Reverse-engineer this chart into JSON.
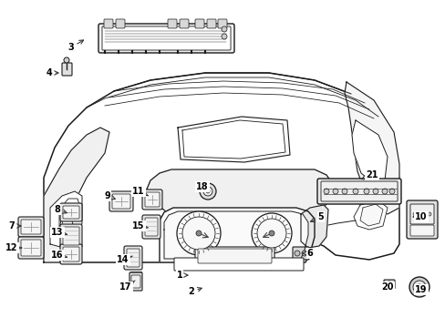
{
  "background_color": "#ffffff",
  "line_color": "#1a1a1a",
  "text_color": "#000000",
  "figsize": [
    4.89,
    3.6
  ],
  "dpi": 100,
  "annotations": [
    [
      "3",
      95,
      42,
      78,
      52
    ],
    [
      "4",
      68,
      80,
      54,
      80
    ],
    [
      "7",
      27,
      248,
      13,
      248
    ],
    [
      "8",
      77,
      235,
      63,
      230
    ],
    [
      "9",
      130,
      220,
      118,
      215
    ],
    [
      "10",
      452,
      238,
      462,
      238
    ],
    [
      "11",
      163,
      215,
      152,
      210
    ],
    [
      "12",
      27,
      272,
      13,
      272
    ],
    [
      "13",
      77,
      258,
      63,
      255
    ],
    [
      "14",
      148,
      280,
      135,
      285
    ],
    [
      "15",
      163,
      250,
      152,
      248
    ],
    [
      "16",
      77,
      283,
      63,
      280
    ],
    [
      "17",
      148,
      308,
      138,
      315
    ],
    [
      "18",
      230,
      210,
      222,
      205
    ],
    [
      "19",
      460,
      312,
      462,
      318
    ],
    [
      "20",
      432,
      312,
      425,
      315
    ],
    [
      "21",
      393,
      198,
      408,
      192
    ],
    [
      "1",
      210,
      302,
      197,
      302
    ],
    [
      "2",
      225,
      315,
      210,
      320
    ],
    [
      "5",
      337,
      245,
      352,
      238
    ],
    [
      "6",
      328,
      278,
      340,
      278
    ]
  ]
}
